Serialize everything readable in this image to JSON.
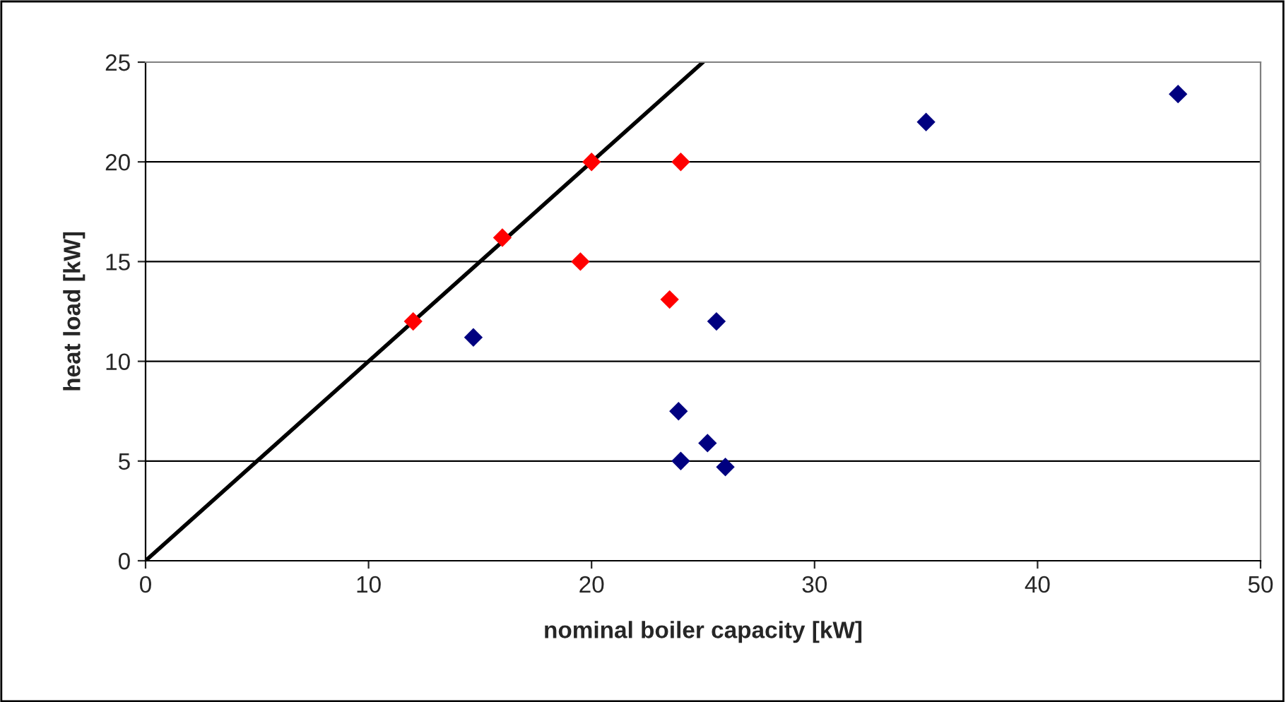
{
  "chart_data": {
    "type": "scatter",
    "xlabel": "nominal boiler capacity [kW]",
    "ylabel": "heat load [kW]",
    "xlim": [
      0,
      50
    ],
    "ylim": [
      0,
      25
    ],
    "xticks": [
      0,
      10,
      20,
      30,
      40,
      50
    ],
    "yticks": [
      0,
      5,
      10,
      15,
      20,
      25
    ],
    "grid": "y",
    "legend": false,
    "marker": "diamond",
    "series": [
      {
        "color": "#ff0000",
        "x": [
          12.0,
          16.0,
          20.0,
          24.0,
          19.5,
          23.5
        ],
        "values": [
          12.0,
          16.2,
          20.0,
          20.0,
          15.0,
          13.1
        ]
      },
      {
        "color": "#000080",
        "x": [
          14.7,
          25.6,
          23.9,
          25.2,
          24.0,
          26.0,
          35.0,
          46.3
        ],
        "values": [
          11.2,
          12.0,
          7.5,
          5.9,
          5.0,
          4.7,
          22.0,
          23.4
        ]
      },
      {
        "type": "line",
        "marker": "none",
        "color": "#000000",
        "x": [
          0,
          25
        ],
        "values": [
          0,
          25
        ]
      }
    ]
  }
}
